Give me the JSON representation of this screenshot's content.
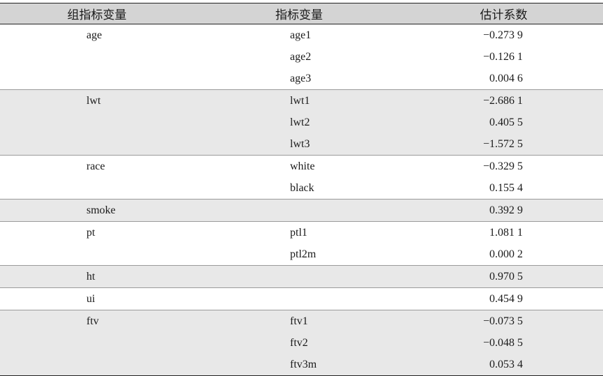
{
  "headers": {
    "group": "组指标变量",
    "indicator": "指标变量",
    "estimate": "估计系数"
  },
  "rows": [
    {
      "group": "age",
      "indicator": "age1",
      "estimate": "−0.273 9"
    },
    {
      "group": "",
      "indicator": "age2",
      "estimate": "−0.126 1"
    },
    {
      "group": "",
      "indicator": "age3",
      "estimate": "0.004 6"
    },
    {
      "group": "lwt",
      "indicator": "lwt1",
      "estimate": "−2.686 1"
    },
    {
      "group": "",
      "indicator": "lwt2",
      "estimate": "0.405 5"
    },
    {
      "group": "",
      "indicator": "lwt3",
      "estimate": "−1.572 5"
    },
    {
      "group": "race",
      "indicator": "white",
      "estimate": "−0.329 5"
    },
    {
      "group": "",
      "indicator": "black",
      "estimate": "0.155 4"
    },
    {
      "group": "smoke",
      "indicator": "",
      "estimate": "0.392 9"
    },
    {
      "group": "pt",
      "indicator": "ptl1",
      "estimate": "1.081 1"
    },
    {
      "group": "",
      "indicator": "ptl2m",
      "estimate": "0.000 2"
    },
    {
      "group": "ht",
      "indicator": "",
      "estimate": "0.970 5"
    },
    {
      "group": "ui",
      "indicator": "",
      "estimate": "0.454 9"
    },
    {
      "group": "ftv",
      "indicator": "ftv1",
      "estimate": "−0.073 5"
    },
    {
      "group": "",
      "indicator": "ftv2",
      "estimate": "−0.048 5"
    },
    {
      "group": "",
      "indicator": "ftv3m",
      "estimate": "0.053 4"
    }
  ],
  "colors": {
    "header_background": "#d4d4d4",
    "shaded_row_background": "#e8e8e8",
    "rule": "#222222"
  }
}
